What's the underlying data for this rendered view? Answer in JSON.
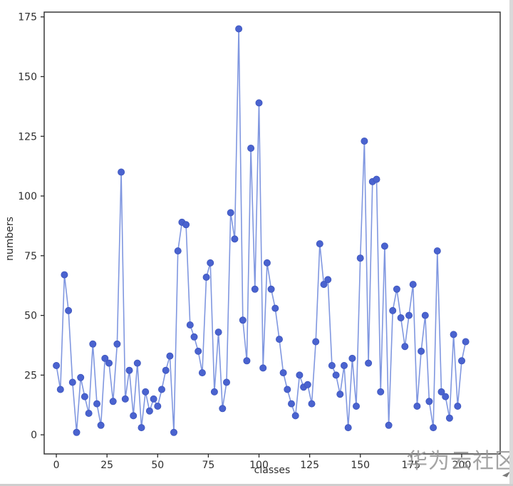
{
  "chart_data": {
    "type": "line",
    "title": "",
    "xlabel": "classes",
    "ylabel": "numbers",
    "x": [
      0,
      2,
      4,
      6,
      8,
      10,
      12,
      14,
      16,
      18,
      20,
      22,
      24,
      26,
      28,
      30,
      32,
      34,
      36,
      38,
      40,
      42,
      44,
      46,
      48,
      50,
      52,
      54,
      56,
      58,
      60,
      62,
      64,
      66,
      68,
      70,
      72,
      74,
      76,
      78,
      80,
      82,
      84,
      86,
      88,
      90,
      92,
      94,
      96,
      98,
      100,
      102,
      104,
      106,
      108,
      110,
      112,
      114,
      116,
      118,
      120,
      122,
      124,
      126,
      128,
      130,
      132,
      134,
      136,
      138,
      140,
      142,
      144,
      146,
      148,
      150,
      152,
      154,
      156,
      158,
      160,
      162,
      164,
      166,
      168,
      170,
      172,
      174,
      176,
      178,
      180,
      182,
      184,
      186,
      188,
      190,
      192,
      194,
      196,
      198,
      200,
      202
    ],
    "values": [
      29,
      19,
      67,
      52,
      22,
      1,
      24,
      16,
      9,
      38,
      13,
      4,
      32,
      30,
      14,
      38,
      110,
      15,
      27,
      8,
      30,
      3,
      18,
      10,
      15,
      12,
      19,
      27,
      33,
      1,
      77,
      89,
      88,
      46,
      41,
      35,
      26,
      66,
      72,
      18,
      43,
      11,
      22,
      93,
      82,
      170,
      48,
      31,
      120,
      61,
      139,
      28,
      72,
      61,
      53,
      40,
      26,
      19,
      13,
      8,
      25,
      20,
      21,
      13,
      39,
      80,
      63,
      65,
      29,
      25,
      17,
      29,
      3,
      32,
      12,
      74,
      123,
      30,
      106,
      107,
      18,
      79,
      4,
      52,
      61,
      49,
      37,
      50,
      63,
      12,
      35,
      50,
      14,
      3,
      77,
      18,
      16,
      7,
      42,
      12,
      31,
      39
    ],
    "xticks": [
      0,
      25,
      50,
      75,
      100,
      125,
      150,
      175,
      200
    ],
    "yticks": [
      0,
      25,
      50,
      75,
      100,
      125,
      150,
      175
    ],
    "xlim": [
      -6,
      219
    ],
    "ylim": [
      -8,
      177
    ],
    "grid": false,
    "legend_position": "none",
    "line_color": "#8097e0",
    "marker": "o",
    "marker_color": "#4a63cf",
    "marker_edge_color": "#3d55bd",
    "axis_color": "#2a2a2a",
    "tick_label_color": "#2e2e2e"
  },
  "watermark": {
    "text": "华为云社区",
    "color": "#949494"
  }
}
